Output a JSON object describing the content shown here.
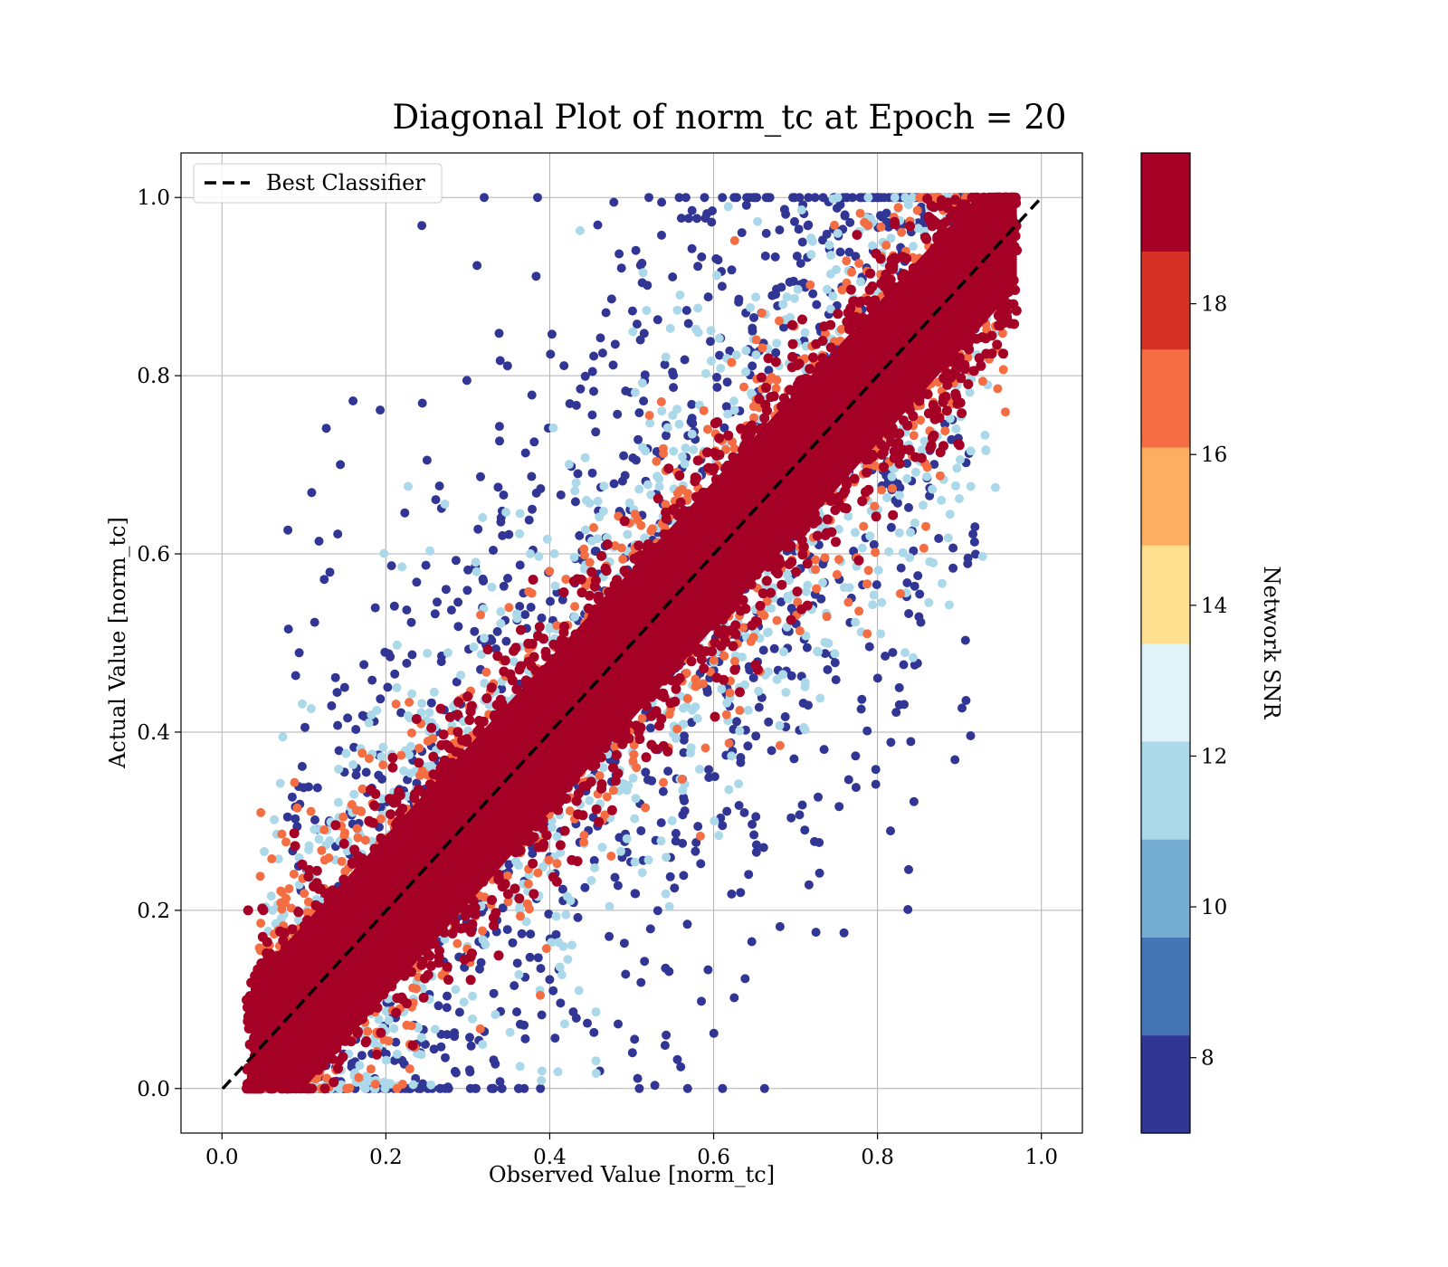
{
  "chart_data": {
    "type": "scatter",
    "title": "Diagonal Plot of norm_tc at Epoch = 20",
    "xlabel": "Observed Value [norm_tc]",
    "ylabel": "Actual Value [norm_tc]",
    "xlim": [
      -0.05,
      1.05
    ],
    "ylim": [
      -0.05,
      1.05
    ],
    "xticks": [
      "0.0",
      "0.2",
      "0.4",
      "0.6",
      "0.8",
      "1.0"
    ],
    "yticks": [
      "0.0",
      "0.2",
      "0.4",
      "0.6",
      "0.8",
      "1.0"
    ],
    "grid": true,
    "legend": {
      "position": "top-left",
      "entries": [
        "Best Classifier"
      ]
    },
    "reference_line": {
      "name": "Best Classifier",
      "style": "dashed",
      "color": "#000000",
      "x": [
        0,
        1
      ],
      "y": [
        0,
        1
      ]
    },
    "colorbar": {
      "label": "Network SNR",
      "range": [
        7,
        20
      ],
      "ticks": [
        "8",
        "10",
        "12",
        "14",
        "16",
        "18"
      ],
      "tick_values": [
        8,
        10,
        12,
        14,
        16,
        18
      ],
      "colors": [
        "#313695",
        "#4575b4",
        "#74add1",
        "#abd9e9",
        "#e0f3f8",
        "#fee090",
        "#fdae61",
        "#f46d43",
        "#d73027",
        "#a50026"
      ]
    },
    "point_groups": [
      {
        "snr": 19.5,
        "color": "#a50026",
        "pattern": "dense diagonal band around y = x, x from 0.03 to 0.97, clipped to [0, 1]",
        "approx_spread": 0.06
      },
      {
        "snr": 16.5,
        "color": "#f46d43",
        "pattern": "fringe just outside the main band",
        "approx_spread": 0.09
      },
      {
        "snr": 12.5,
        "color": "#abd9e9",
        "pattern": "scattered further from the diagonal",
        "approx_spread": 0.14
      },
      {
        "snr": 8.0,
        "color": "#313695",
        "pattern": "widely scattered outliers, x from 0.1 to 0.9",
        "approx_spread": 0.25
      }
    ]
  }
}
